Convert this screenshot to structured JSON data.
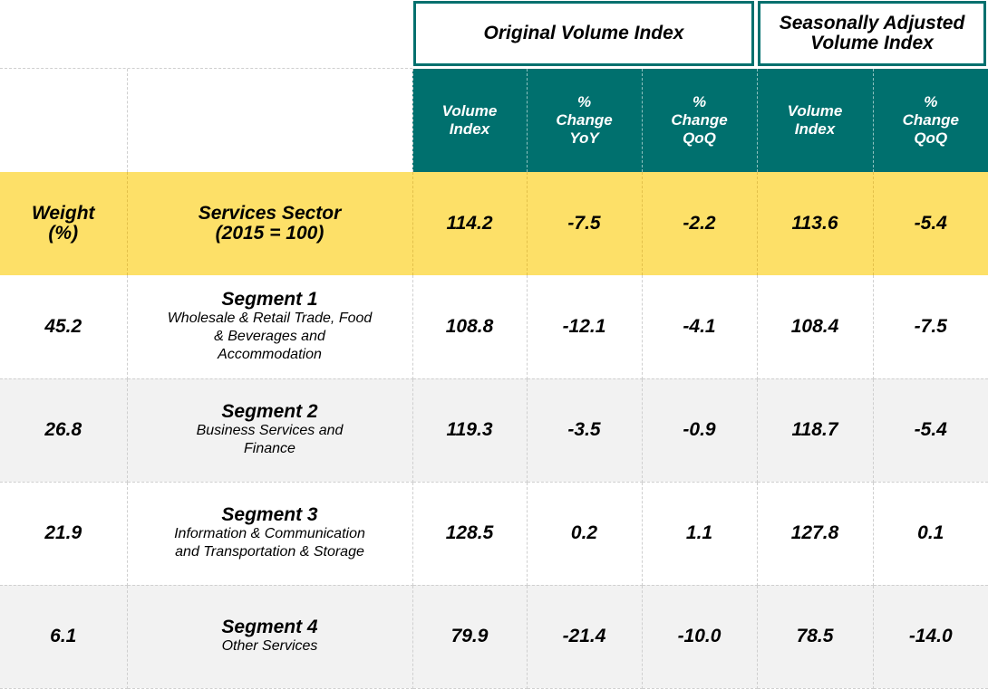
{
  "chart_data": {
    "type": "table",
    "group_headers": [
      "Original Volume Index",
      "Seasonally Adjusted Volume Index"
    ],
    "columns": [
      "Volume Index",
      "% Change YoY",
      "% Change QoQ",
      "Volume Index",
      "% Change QoQ"
    ],
    "weight_header": "Weight (%)",
    "sector": {
      "name": "Services Sector (2015 = 100)",
      "values": [
        "114.2",
        "-7.5",
        "-2.2",
        "113.6",
        "-5.4"
      ]
    },
    "rows": [
      {
        "weight": "45.2",
        "title": "Segment 1",
        "description": "Wholesale & Retail Trade, Food & Beverages and Accommodation",
        "values": [
          "108.8",
          "-12.1",
          "-4.1",
          "108.4",
          "-7.5"
        ]
      },
      {
        "weight": "26.8",
        "title": "Segment 2",
        "description": "Business Services and Finance",
        "values": [
          "119.3",
          "-3.5",
          "-0.9",
          "118.7",
          "-5.4"
        ]
      },
      {
        "weight": "21.9",
        "title": "Segment 3",
        "description": "Information & Communication and Transportation & Storage",
        "values": [
          "128.5",
          "0.2",
          "1.1",
          "127.8",
          "0.1"
        ]
      },
      {
        "weight": "6.1",
        "title": "Segment 4",
        "description": "Other Services",
        "values": [
          "79.9",
          "-21.4",
          "-10.0",
          "78.5",
          "-14.0"
        ]
      }
    ]
  },
  "colors": {
    "header_teal": "#00706e",
    "sector_yellow": "#fde068",
    "alt_row_grey": "#f2f2f2"
  }
}
